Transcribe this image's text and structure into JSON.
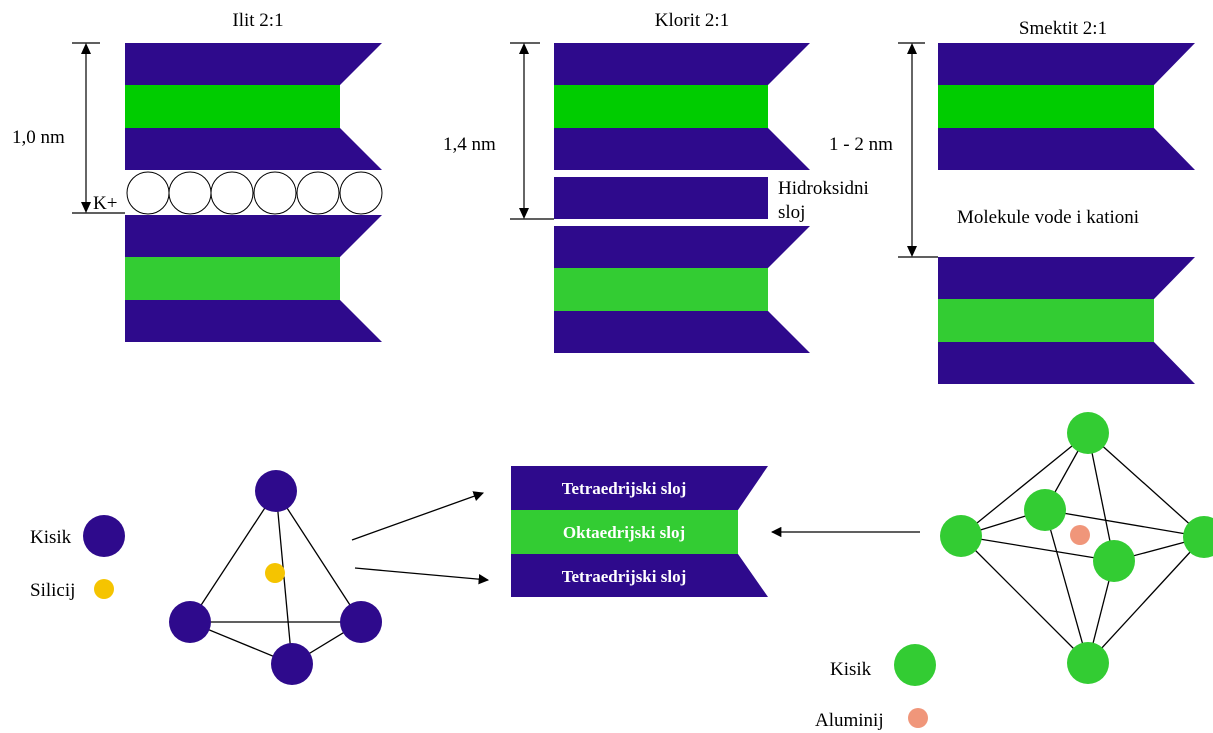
{
  "colors": {
    "tetrahedral": "#2e0a8c",
    "octahedral_bright": "#00cc00",
    "octahedral": "#33cc33",
    "oxygen_green": "#33cc33",
    "silicon": "#f5c400",
    "aluminium": "#f0967a",
    "potassium": "#ffffff"
  },
  "top": {
    "illite": {
      "title": "Ilit 2:1",
      "distance": "1,0 nm",
      "cation": "K+"
    },
    "chlorite": {
      "title": "Klorit 2:1",
      "distance": "1,4 nm",
      "hydroxide_line1": "Hidroksidni",
      "hydroxide_line2": "sloj"
    },
    "smectite": {
      "title": "Smektit 2:1",
      "distance": "1 - 2 nm",
      "interlayer": "Molekule vode i kationi"
    }
  },
  "bottom": {
    "tetrahedron": {
      "oxygen_label": "Kisik",
      "silicon_label": "Silicij"
    },
    "sheet_stack": {
      "top": "Tetraedrijski sloj",
      "middle": "Oktaedrijski sloj",
      "bottom": "Tetraedrijski sloj"
    },
    "octahedron": {
      "oxygen_label": "Kisik",
      "aluminium_label": "Aluminij"
    }
  }
}
